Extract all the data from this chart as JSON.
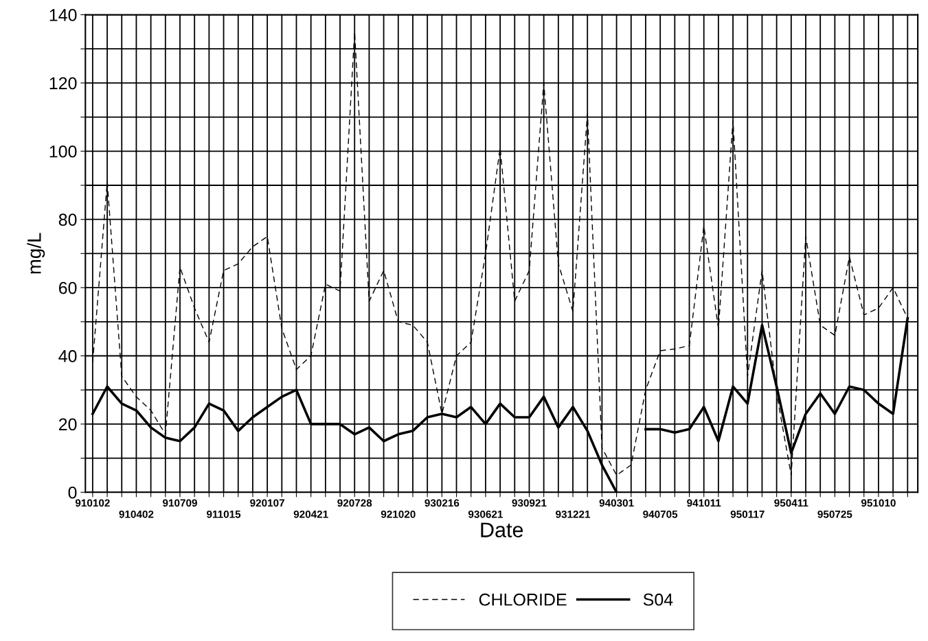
{
  "chart_data": {
    "type": "line",
    "xlabel": "Date",
    "ylabel": "mg/L",
    "categories": [
      "910102",
      null,
      null,
      "910402",
      null,
      null,
      "910709",
      null,
      null,
      "911015",
      null,
      null,
      "920107",
      null,
      null,
      "920421",
      null,
      null,
      "920728",
      null,
      null,
      "921020",
      null,
      null,
      "930216",
      null,
      null,
      "930621",
      null,
      null,
      "930921",
      null,
      null,
      "931221",
      null,
      null,
      "940301",
      null,
      null,
      "940705",
      null,
      null,
      "941011",
      null,
      null,
      "950117",
      null,
      null,
      "950411",
      null,
      null,
      "950725",
      null,
      null,
      "951010",
      null,
      null
    ],
    "series": [
      {
        "name": "CHLORIDE",
        "color": "#000000",
        "line_style": "dashed",
        "values": [
          38,
          91,
          34,
          28,
          24,
          17,
          66,
          54,
          44,
          65,
          67,
          72,
          75,
          48,
          36,
          40,
          61,
          59,
          135,
          56,
          65,
          50,
          49,
          44,
          23,
          40,
          44,
          70,
          101,
          56,
          65,
          120,
          67,
          53,
          111,
          13,
          5,
          8,
          30,
          41.5,
          42,
          43,
          78,
          48,
          109,
          34,
          65,
          29,
          5,
          75,
          49,
          46,
          69,
          52,
          54,
          60,
          51
        ]
      },
      {
        "name": "S04",
        "color": "#000000",
        "line_style": "solid",
        "values": [
          23,
          31,
          26,
          24,
          19,
          16,
          15,
          19,
          26,
          24,
          18,
          22,
          25,
          28,
          30,
          20,
          20,
          20,
          17,
          19,
          15,
          17,
          18,
          22,
          23,
          22,
          25,
          20,
          26,
          22,
          22,
          28,
          19,
          25,
          18,
          8,
          0,
          null,
          18.5,
          18.5,
          17.5,
          18.5,
          25,
          15,
          31,
          26,
          49,
          31,
          11.5,
          23,
          29,
          23,
          31,
          30,
          26,
          23,
          51
        ]
      }
    ],
    "ylim": [
      0,
      140
    ],
    "yticks": [
      0,
      {
        "value": 10,
        "label": null
      },
      20,
      {
        "value": 30,
        "label": null
      },
      40,
      {
        "value": 50,
        "label": null
      },
      60,
      {
        "value": 70,
        "label": null
      },
      80,
      {
        "value": 90,
        "label": null
      },
      100,
      {
        "value": 110,
        "label": null
      },
      120,
      {
        "value": 130,
        "label": null
      },
      140
    ],
    "grid": true,
    "legend": "bottom",
    "marker": "none"
  }
}
